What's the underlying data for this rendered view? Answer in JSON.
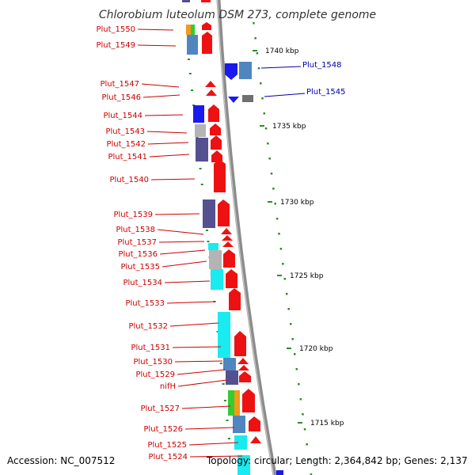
{
  "title": "Chlorobium luteolum DSM 273, complete genome",
  "footer": {
    "accession": "Accession: NC_007512",
    "topology": "Topology: circular; Length: 2,364,842 bp; Genes: 2,137"
  },
  "colors": {
    "backbone": "#8c8c8c",
    "left_label": "#cc0000",
    "right_label": "#0000aa",
    "tick": "#2e8b2e",
    "red": "#ee1111",
    "blue": "#1a1aee",
    "steel": "#4f86c0",
    "slate": "#55508f",
    "gray": "#b4b4b4",
    "cyan": "#19ebf0",
    "orange": "#f29a1a",
    "green": "#33cc33",
    "darkgray": "#707070"
  },
  "kbp_marks": [
    {
      "label": "1740 kbp"
    },
    {
      "label": "1735 kbp"
    },
    {
      "label": "1730 kbp"
    },
    {
      "label": "1725 kbp"
    },
    {
      "label": "1720 kbp"
    },
    {
      "label": "1715 kbp"
    }
  ],
  "left_labels": [
    {
      "text": "Plut_1550"
    },
    {
      "text": "Plut_1549"
    },
    {
      "text": "Plut_1547"
    },
    {
      "text": "Plut_1546"
    },
    {
      "text": "Plut_1544"
    },
    {
      "text": "Plut_1543"
    },
    {
      "text": "Plut_1542"
    },
    {
      "text": "Plut_1541"
    },
    {
      "text": "Plut_1540"
    },
    {
      "text": "Plut_1539"
    },
    {
      "text": "Plut_1538"
    },
    {
      "text": "Plut_1537"
    },
    {
      "text": "Plut_1536"
    },
    {
      "text": "Plut_1535"
    },
    {
      "text": "Plut_1534"
    },
    {
      "text": "Plut_1533"
    },
    {
      "text": "Plut_1532"
    },
    {
      "text": "Plut_1531"
    },
    {
      "text": "Plut_1530"
    },
    {
      "text": "Plut_1529"
    },
    {
      "text": "nifH"
    },
    {
      "text": "Plut_1527"
    },
    {
      "text": "Plut_1526"
    },
    {
      "text": "Plut_1525"
    },
    {
      "text": "Plut_1524"
    }
  ],
  "right_labels": [
    {
      "text": "Plut_1548"
    },
    {
      "text": "Plut_1545"
    }
  ]
}
